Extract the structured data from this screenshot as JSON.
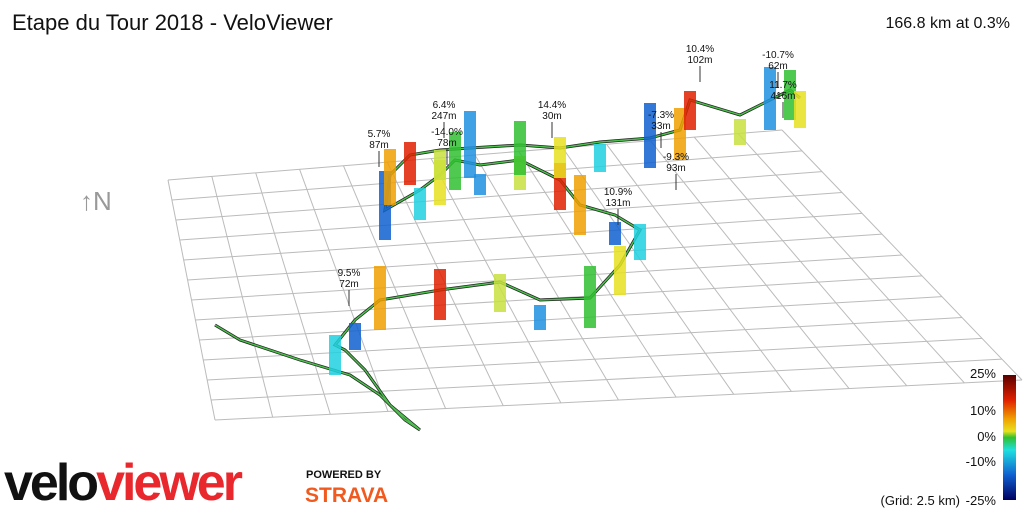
{
  "header": {
    "title": "Etape du Tour 2018 - VeloViewer",
    "summary": "166.8 km at 0.3%"
  },
  "compass": "↑N",
  "annotations": [
    {
      "grade": "5.7%",
      "length": "87m"
    },
    {
      "grade": "6.4%",
      "length": "247m"
    },
    {
      "grade": "-14.0%",
      "length": "78m"
    },
    {
      "grade": "14.4%",
      "length": "30m"
    },
    {
      "grade": "10.4%",
      "length": "102m"
    },
    {
      "grade": "-10.7%",
      "length": "62m"
    },
    {
      "grade": "11.7%",
      "length": "416m"
    },
    {
      "grade": "-7.3%",
      "length": "33m"
    },
    {
      "grade": "-9.3%",
      "length": "93m"
    },
    {
      "grade": "10.9%",
      "length": "131m"
    },
    {
      "grade": "9.5%",
      "length": "72m"
    }
  ],
  "legend": {
    "labels": [
      "25%",
      "10%",
      "0%",
      "-10%",
      "-25%"
    ],
    "grid_note": "(Grid: 2.5 km)"
  },
  "branding": {
    "velo": "velo",
    "viewer": "viewer",
    "powered_by": "POWERED BY",
    "strava": "STRAVA"
  }
}
